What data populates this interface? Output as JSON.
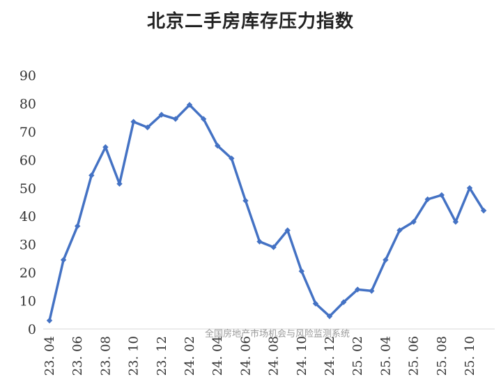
{
  "chart_data": {
    "type": "line",
    "title": "北京二手房库存压力指数",
    "xlabel": "",
    "ylabel": "",
    "ylim": [
      0,
      90
    ],
    "yticks": [
      0,
      10,
      20,
      30,
      40,
      50,
      60,
      70,
      80,
      90
    ],
    "grid": false,
    "legend": "none",
    "x": [
      "23.04",
      "23.05",
      "23.06",
      "23.07",
      "23.08",
      "23.09",
      "23.10",
      "23.11",
      "23.12",
      "24.01",
      "24.02",
      "24.03",
      "24.04",
      "24.05",
      "24.06",
      "24.07",
      "24.08",
      "24.09",
      "24.10",
      "24.11",
      "24.12",
      "25.01",
      "25.02",
      "25.03",
      "25.04",
      "25.05",
      "25.06",
      "25.07",
      "25.08",
      "25.09",
      "25.10",
      "25.11"
    ],
    "xtick_labels": [
      "23. 04",
      "23. 06",
      "23. 08",
      "23. 10",
      "23. 12",
      "24. 02",
      "24. 04",
      "24. 06",
      "24. 08",
      "24. 10",
      "24. 12",
      "25. 02",
      "25. 04",
      "25. 06",
      "25. 08",
      "25. 10"
    ],
    "series": [
      {
        "values": [
          3,
          24.5,
          36.5,
          54.5,
          64.5,
          51.5,
          73.5,
          71.5,
          76,
          74.5,
          79.5,
          74.5,
          65,
          60.5,
          45.5,
          31,
          29,
          35,
          20.5,
          9,
          4.5,
          9.5,
          14,
          13.5,
          24.5,
          35,
          38,
          46,
          47.5,
          38,
          50,
          42
        ],
        "color": "#4472C4"
      }
    ]
  },
  "watermark": "全国房地产市场机会与风险监测系统"
}
